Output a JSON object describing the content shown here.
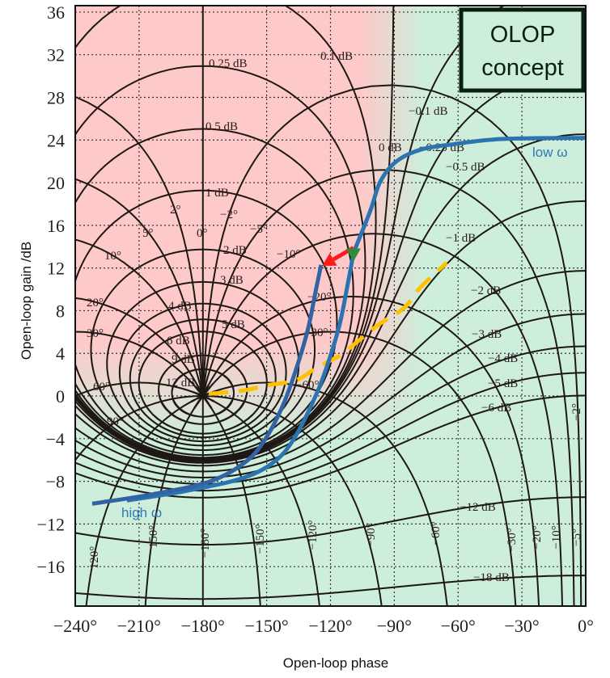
{
  "chart_data": {
    "type": "line",
    "subtype": "nichols-chart",
    "xlabel": "Open-loop phase",
    "ylabel": "Open-loop gain /dB",
    "xlim": [
      -240,
      0
    ],
    "ylim": [
      -19.7,
      36.6
    ],
    "grid": true,
    "x_ticks": [
      -240,
      -210,
      -180,
      -150,
      -120,
      -90,
      -60,
      -30,
      0
    ],
    "x_tick_labels": [
      "−240°",
      "−210°",
      "−180°",
      "−150°",
      "−120°",
      "−90°",
      "−60°",
      "−30°",
      "0°"
    ],
    "y_ticks": [
      36,
      32,
      28,
      24,
      20,
      16,
      12,
      8,
      4,
      0,
      -4,
      -8,
      -12,
      -16
    ],
    "y_tick_labels": [
      "36",
      "32",
      "28",
      "24",
      "20",
      "16",
      "12",
      "8",
      "4",
      "0",
      "−4",
      "−8",
      "−12",
      "−16"
    ],
    "colors": {
      "unstable_region": "#fdc9c9",
      "stable_region": "#cdeedb",
      "contour": "#1e1814",
      "original_curve": "#2b74b0",
      "shifted_curve": "#3263a3",
      "olop_boundary": "#ffc000",
      "shift_arrow": "#ff1a1a",
      "marker": "#2e8b3e"
    },
    "m_contours_db": [
      12,
      9,
      6,
      5,
      4,
      3,
      2,
      1,
      0.5,
      0.25,
      0.1,
      0,
      -0.1,
      -0.25,
      -0.5,
      -1,
      -2,
      -3,
      -4,
      -5,
      -6,
      -12,
      -18
    ],
    "n_contours_deg": [
      0,
      2,
      -2,
      5,
      -5,
      10,
      -10,
      20,
      -20,
      30,
      -30,
      60,
      -60,
      90,
      -90,
      120,
      -120,
      150,
      -150,
      180
    ],
    "m_labels": [
      "0.25 dB",
      "0.5 dB",
      "1 dB",
      "2 dB",
      "3 dB",
      "4 dB",
      "5 dB",
      "6 dB",
      "9 dB",
      "12 dB",
      "0.1 dB",
      "0 dB",
      "−0.1 dB",
      "−0.25 dB",
      "−0.5 dB",
      "−1 dB",
      "−2 dB",
      "−3 dB",
      "−4 dB",
      "−5 dB",
      "−6 dB",
      "−12 dB",
      "−18 dB"
    ],
    "n_labels": [
      "2°",
      "0°",
      "−2°",
      "5°",
      "−5°",
      "10°",
      "−10°",
      "20°",
      "−20°",
      "30°",
      "−30°",
      "60°",
      "−60°",
      "90°"
    ],
    "n_labels_rotated": [
      "120°",
      "150°",
      "−180°",
      "−150°",
      "−120°",
      "−90°",
      "−60°",
      "−30°",
      "−20°",
      "−10°",
      "−5°",
      "−2°"
    ],
    "series": [
      {
        "name": "low ω",
        "role": "original open-loop curve",
        "x": [
          0,
          -39.5,
          -62.4,
          -77.6,
          -89.0,
          -96.6,
          -101.2,
          -108.0,
          -109.2,
          -111.8,
          -115.6,
          -121.3,
          -127.0,
          -136.5,
          -146.0,
          -161.3,
          -187.9,
          -215.7
        ],
        "y": [
          24.2,
          24.1,
          23.6,
          23.1,
          22.0,
          20.1,
          17.4,
          14.0,
          13.3,
          10.6,
          6.8,
          3.0,
          0,
          -3.8,
          -6.1,
          -7.7,
          -8.9,
          -9.8
        ]
      },
      {
        "name": "high ω",
        "role": "shifted open-loop curve",
        "x": [
          -124.4,
          -127.0,
          -130.8,
          -136.5,
          -142.2,
          -149.9,
          -159.4,
          -176.5,
          -203.1,
          -232.0
        ],
        "y": [
          12.3,
          9.8,
          6.1,
          2.3,
          -0.8,
          -3.8,
          -6.1,
          -8.0,
          -9.2,
          -10.1
        ]
      },
      {
        "role": "OLOP boundary (dashed)",
        "x": [
          -177.2,
          -161.3,
          -149.9,
          -135.8,
          -126.3,
          -115.6,
          -106.1,
          -96.6,
          -85.2,
          -77.6,
          -65.4
        ],
        "y": [
          0.2,
          0.5,
          1.0,
          1.5,
          2.7,
          3.8,
          5.3,
          6.8,
          8.3,
          10.2,
          12.5
        ]
      }
    ],
    "arrow": {
      "from": [
        -109.2,
        13.9
      ],
      "to": [
        -123.9,
        12.2
      ]
    },
    "marker_point": [
      -109.2,
      13.3
    ]
  },
  "annotations": {
    "low_omega": "low ω",
    "high_omega": "high ω",
    "box_line1": "OLOP",
    "box_line2": "concept"
  }
}
